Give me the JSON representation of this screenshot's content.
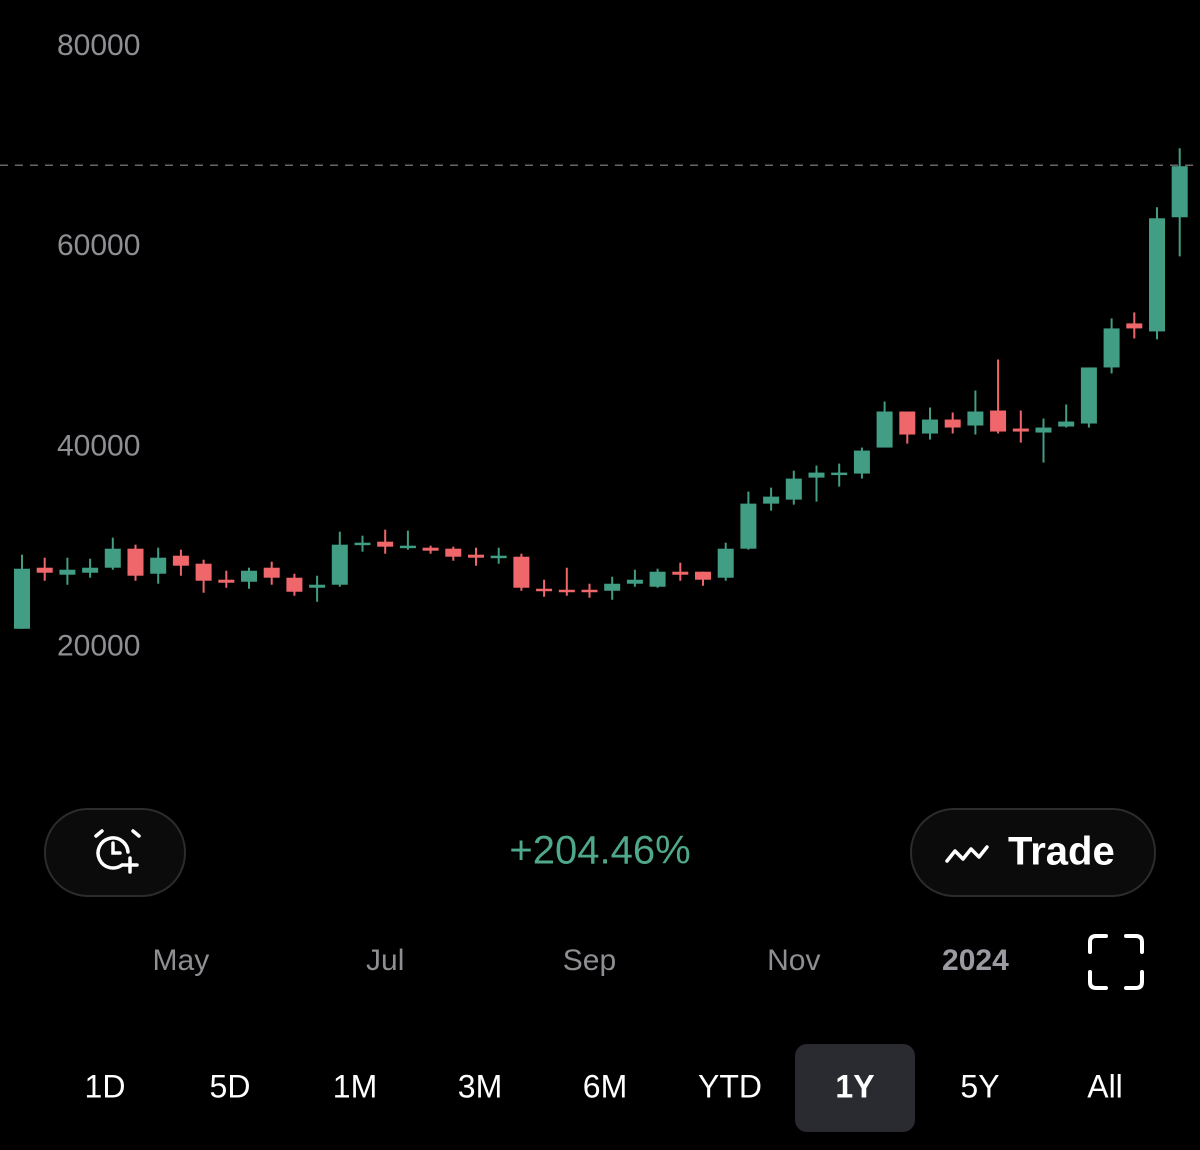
{
  "chart_data": {
    "type": "candlestick",
    "ylim": [
      5000,
      85000
    ],
    "yticks": [
      20000,
      40000,
      60000,
      80000
    ],
    "categories": [
      null,
      null,
      null,
      null,
      null,
      null,
      null,
      "May",
      null,
      null,
      null,
      null,
      null,
      null,
      null,
      null,
      "Jul",
      null,
      null,
      null,
      null,
      null,
      null,
      null,
      null,
      "Sep",
      null,
      null,
      null,
      null,
      null,
      null,
      null,
      null,
      "Nov",
      null,
      null,
      null,
      null,
      null,
      null,
      null,
      "2024",
      null,
      null,
      null,
      null,
      null,
      null,
      null,
      null,
      null
    ],
    "open": [
      21900,
      28000,
      27300,
      27500,
      28000,
      29900,
      27400,
      29200,
      28400,
      26800,
      26600,
      28000,
      27000,
      26000,
      26300,
      30300,
      30600,
      30100,
      30000,
      29900,
      29300,
      29000,
      29100,
      25900,
      25800,
      25800,
      25700,
      26400,
      26100,
      27600,
      27600,
      27000,
      29900,
      34400,
      34800,
      37000,
      37400,
      37400,
      40000,
      43600,
      41400,
      42800,
      42200,
      43700,
      41900,
      41500,
      42100,
      42400,
      48000,
      52400,
      51600,
      63000
    ],
    "high": [
      29300,
      29000,
      29000,
      28900,
      31000,
      30300,
      30000,
      29800,
      28800,
      27700,
      28000,
      28600,
      27400,
      27200,
      31600,
      31200,
      31800,
      31700,
      30200,
      30100,
      30000,
      30000,
      29400,
      26800,
      28000,
      26400,
      27100,
      27800,
      27900,
      28500,
      27600,
      30500,
      35600,
      36000,
      37700,
      38200,
      38400,
      40000,
      44600,
      43600,
      44000,
      43500,
      45700,
      48800,
      43700,
      42900,
      44300,
      48000,
      52900,
      53500,
      64000,
      69900
    ],
    "low": [
      21900,
      26700,
      26300,
      27000,
      27800,
      26700,
      26400,
      27200,
      25500,
      26000,
      25900,
      26300,
      25200,
      24600,
      26100,
      29600,
      29400,
      29800,
      29400,
      28700,
      28200,
      28400,
      25700,
      25100,
      25200,
      25000,
      24800,
      26100,
      26000,
      26700,
      26200,
      26700,
      29800,
      33700,
      34300,
      34600,
      36100,
      36900,
      40000,
      40400,
      40800,
      41400,
      41300,
      41400,
      40500,
      38500,
      42000,
      42000,
      47400,
      50900,
      50800,
      59100
    ],
    "close": [
      27900,
      27500,
      27800,
      28000,
      29900,
      27200,
      29000,
      28200,
      26700,
      26500,
      27700,
      27000,
      25600,
      26300,
      30300,
      30500,
      30100,
      30200,
      29700,
      29100,
      29000,
      29200,
      26000,
      25700,
      25600,
      25600,
      26400,
      26800,
      27600,
      27300,
      26800,
      29900,
      34400,
      35100,
      36900,
      37500,
      37500,
      39700,
      43600,
      41300,
      42800,
      42000,
      43600,
      41600,
      41600,
      42000,
      42600,
      48000,
      51900,
      51900,
      62900,
      68100
    ],
    "up_color": "#419d84",
    "down_color": "#f0676b",
    "current_price": 68200,
    "change": "+204.46%"
  },
  "buttons": {
    "trade": "Trade"
  },
  "periods": [
    "1D",
    "5D",
    "1M",
    "3M",
    "6M",
    "YTD",
    "1Y",
    "5Y",
    "All"
  ],
  "selected_period": 6
}
